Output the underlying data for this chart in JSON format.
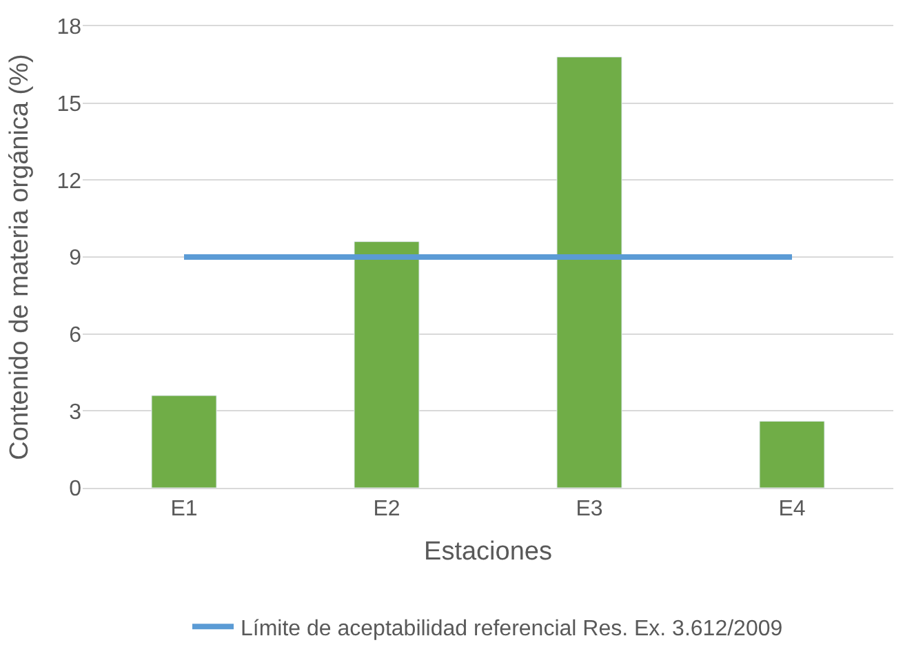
{
  "chart_data": {
    "type": "bar",
    "xlabel": "Estaciones",
    "ylabel": "Contenido de materia orgánica (%)",
    "categories": [
      "E1",
      "E2",
      "E3",
      "E4"
    ],
    "series": [
      {
        "color": "#70ad47",
        "values": [
          3.6,
          9.6,
          16.8,
          2.6
        ]
      },
      {
        "type": "line",
        "name": "Límite de aceptabilidad referencial Res. Ex. 3.612/2009",
        "color": "#5b9bd5",
        "values": [
          9,
          9,
          9,
          9
        ]
      }
    ],
    "ylim": [
      0,
      18
    ],
    "yticks": [
      0,
      3,
      6,
      9,
      12,
      15,
      18
    ],
    "grid": "y",
    "legend": "bottom",
    "marker": "none",
    "line_style": "solid"
  }
}
